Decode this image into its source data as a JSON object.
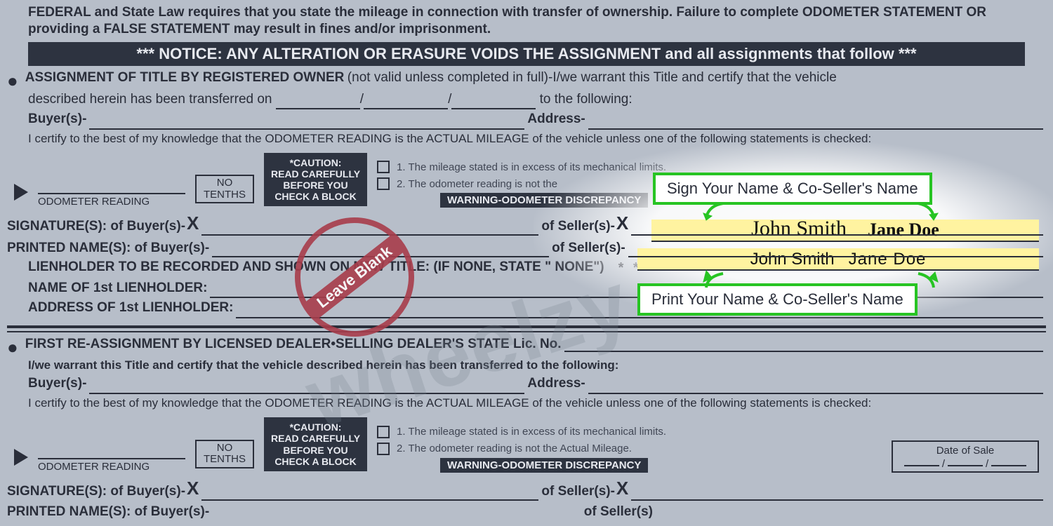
{
  "colors": {
    "page_bg": "#b7bec9",
    "text": "#2a2e3a",
    "dark_bar_bg": "#2d3340",
    "dark_bar_text": "#e8eaf0",
    "callout_border": "#27c423",
    "callout_bg": "#ffffff",
    "highlight_bg": "#fff3a0",
    "stamp_color": "#a83d4b",
    "watermark_color": "rgba(120,130,145,0.25)"
  },
  "legal_header": "FEDERAL and State Law requires that you state the mileage in connection with transfer of ownership. Failure to complete ODOMETER STATEMENT OR providing a FALSE STATEMENT may result in fines and/or imprisonment.",
  "notice_bar": "*** NOTICE: ANY ALTERATION OR  ERASURE VOIDS THE ASSIGNMENT and all assignments that follow ***",
  "section1": {
    "title": "ASSIGNMENT OF TITLE BY REGISTERED OWNER",
    "suffix": " (not valid unless completed in full)-I/we warrant this Title and certify that the vehicle",
    "line2a": "described herein has been transferred on ",
    "line2b": " to the following:",
    "buyers_label": "Buyer(s)-",
    "address_label": "Address-",
    "certify": "I certify to the best of my knowledge that the ODOMETER READING is the ACTUAL MILEAGE of the vehicle unless one of the following statements is checked:",
    "no_tenths": "NO\nTENTHS",
    "caution": "*CAUTION:\nREAD CAREFULLY\nBEFORE YOU\nCHECK A BLOCK",
    "check1": "1. The mileage stated is in excess of its mechanical  limits.",
    "check2": "2. The odometer reading is not the",
    "odo_label": "ODOMETER READING",
    "warning_bar": "WARNING-ODOMETER DISCREPANCY",
    "sig_buyers": "SIGNATURE(S): of Buyer(s)-",
    "sig_sellers": "of Seller(s)-",
    "print_buyers": "PRINTED NAME(S): of Buyer(s)-",
    "print_sellers": "of Seller(s)-",
    "lien_intro": "LIENHOLDER TO BE RECORDED AND SHOWN ON NEW TITLE: (IF NONE, STATE \" NONE\")",
    "lien_stars": "*  *  *  *  *  *  *  *  *  *",
    "lien_name": "NAME OF 1st LIENHOLDER:",
    "lien_addr": "ADDRESS OF 1st LIENHOLDER:"
  },
  "section2": {
    "title": "FIRST RE-ASSIGNMENT BY LICENSED DEALER",
    "dot": " • ",
    "title2": "SELLING DEALER'S STATE Lic. No.",
    "warrant": "I/we warrant this Title and certify that the vehicle described herein has been transferred to the following:",
    "buyers_label": "Buyer(s)-",
    "address_label": "Address-",
    "certify": "I certify to the best of my knowledge that the ODOMETER READING is the ACTUAL MILEAGE of the vehicle unless one of the following statements is checked:",
    "no_tenths": "NO\nTENTHS",
    "caution": "*CAUTION:\nREAD CAREFULLY\nBEFORE YOU\nCHECK A BLOCK",
    "check1": "1. The mileage stated is in excess of its mechanical limits.",
    "check2": "2. The odometer reading is not the Actual Mileage.",
    "odo_label": "ODOMETER READING",
    "warning_bar": "WARNING-ODOMETER DISCREPANCY",
    "date_of_sale": "Date of Sale",
    "sig_buyers": "SIGNATURE(S): of Buyer(s)-",
    "sig_sellers": "of Seller(s)-",
    "print_buyers": "PRINTED NAME(S): of Buyer(s)-",
    "print_sellers": "of Seller(s)"
  },
  "annotations": {
    "callout_sign": "Sign Your Name & Co-Seller's Name",
    "callout_print": "Print Your Name & Co-Seller's Name",
    "signature1": "John Smith",
    "signature2": "Jane Doe",
    "printed1": "John Smith",
    "printed2": "Jane Doe",
    "stamp_text": "Leave Blank",
    "watermark": "wheelzy"
  }
}
